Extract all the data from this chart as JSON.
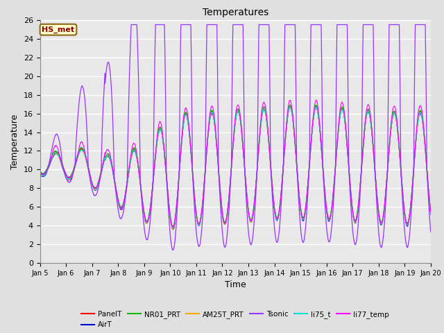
{
  "title": "Temperatures",
  "xlabel": "Time",
  "ylabel": "Temperature",
  "ylim": [
    0,
    26
  ],
  "yticks": [
    0,
    2,
    4,
    6,
    8,
    10,
    12,
    14,
    16,
    18,
    20,
    22,
    24,
    26
  ],
  "annotation_text": "HS_met",
  "annotation_color": "#8B0000",
  "annotation_bg": "#FFFFCC",
  "annotation_border": "#8B6914",
  "series": {
    "PanelT": {
      "color": "#FF0000",
      "lw": 0.8
    },
    "AirT": {
      "color": "#0000CC",
      "lw": 0.8
    },
    "NR01_PRT": {
      "color": "#00BB00",
      "lw": 0.8
    },
    "AM25T_PRT": {
      "color": "#FFA500",
      "lw": 0.8
    },
    "Tsonic": {
      "color": "#9933FF",
      "lw": 0.9
    },
    "li75_t": {
      "color": "#00DDDD",
      "lw": 0.8
    },
    "li77_temp": {
      "color": "#FF00FF",
      "lw": 0.8
    }
  },
  "x_start": 5.0,
  "x_end": 20.0,
  "xtick_positions": [
    5,
    6,
    7,
    8,
    9,
    10,
    11,
    12,
    13,
    14,
    15,
    16,
    17,
    18,
    19,
    20
  ],
  "xtick_labels": [
    "Jan 5",
    "Jan 6",
    "Jan 7",
    "Jan 8",
    "Jan 9",
    "Jan 10",
    "Jan 11",
    "Jan 12",
    "Jan 13",
    "Jan 14",
    "Jan 15",
    "Jan 16",
    "Jan 17",
    "Jan 18",
    "Jan 19",
    "Jan 20"
  ],
  "bg_color": "#E0E0E0",
  "plot_bg": "#E8E8E8",
  "grid_color": "#FFFFFF",
  "figsize": [
    6.4,
    4.8
  ],
  "dpi": 100
}
